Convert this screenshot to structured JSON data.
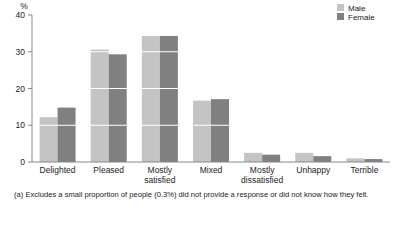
{
  "chart_data": {
    "type": "bar",
    "y_label": "%",
    "categories": [
      "Delighted",
      "Pleased",
      "Mostly satisfied",
      "Mixed",
      "Mostly dissatisfied",
      "Unhappy",
      "Terrible"
    ],
    "series": [
      {
        "name": "Male",
        "color": "#c4c4c4",
        "values": [
          12.2,
          30.6,
          34.3,
          16.7,
          2.5,
          2.5,
          1.0
        ]
      },
      {
        "name": "Female",
        "color": "#808080",
        "values": [
          14.8,
          29.3,
          34.3,
          17.1,
          2.0,
          1.6,
          0.8
        ]
      }
    ],
    "ylim": [
      0,
      40
    ],
    "yticks": [
      0,
      10,
      20,
      30,
      40
    ],
    "grid": true,
    "legend": "top-right",
    "annotation": "(a) Excludes a small proportion of people (0.3%) did not provide a response or did not know how they felt."
  }
}
